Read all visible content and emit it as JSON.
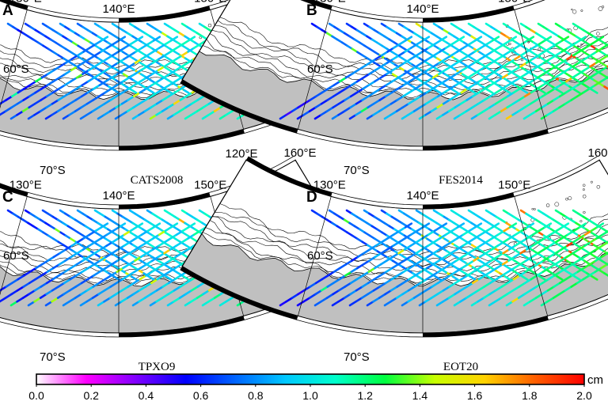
{
  "panels": [
    {
      "letter": "A",
      "model": "CATS2008",
      "seed": 11
    },
    {
      "letter": "B",
      "model": "FES2014",
      "seed": 23
    },
    {
      "letter": "C",
      "model": "TPXO9",
      "seed": 37
    },
    {
      "letter": "D",
      "model": "EOT20",
      "seed": 53
    }
  ],
  "map": {
    "lon_labels": [
      "120°E",
      "130°E",
      "140°E",
      "150°E",
      "160°E"
    ],
    "lat_labels": [
      "60°S",
      "70°S"
    ]
  },
  "colorbar": {
    "unit": "cm",
    "ticks": [
      "0.0",
      "0.2",
      "0.4",
      "0.6",
      "0.8",
      "1.0",
      "1.2",
      "1.4",
      "1.6",
      "1.8",
      "2.0"
    ],
    "min": 0,
    "max": 2.0
  },
  "colors": {
    "land": "#c0c0c0",
    "frame": "#000000",
    "colormap": [
      "#ffffff",
      "#ff00ff",
      "#8000ff",
      "#0000ff",
      "#0066ff",
      "#00c8ff",
      "#00ffcc",
      "#00ff40",
      "#c8ff00",
      "#ffd200",
      "#ff6000",
      "#ff0000"
    ]
  }
}
